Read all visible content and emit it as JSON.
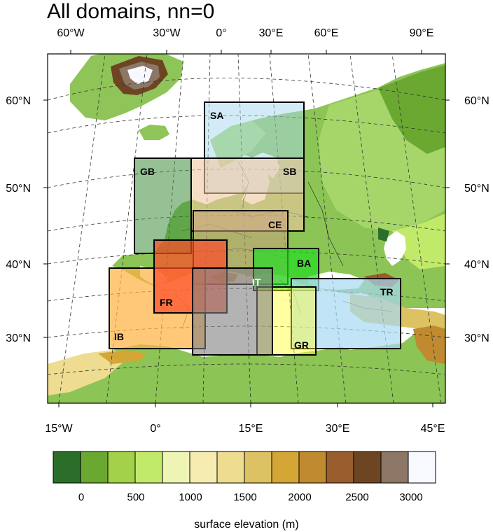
{
  "title": "All domains, nn=0",
  "top_lon_labels": [
    "60°W",
    "30°W",
    "0°",
    "30°E",
    "60°E",
    "90°E"
  ],
  "bottom_lon_labels": [
    "15°W",
    "0°",
    "15°E",
    "30°E",
    "45°E"
  ],
  "left_lat_labels": [
    "60°N",
    "50°N",
    "40°N",
    "30°N"
  ],
  "right_lat_labels": [
    "60°N",
    "50°N",
    "40°N",
    "30°N"
  ],
  "colorbar": {
    "label": "surface elevation (m)",
    "tick_labels": [
      "0",
      "500",
      "1000",
      "1500",
      "2000",
      "2500",
      "3000"
    ],
    "colors": [
      "#2a6e2a",
      "#6aa832",
      "#a3d24a",
      "#c2ea6a",
      "#eef5b4",
      "#f6ecb2",
      "#eedc90",
      "#ddc263",
      "#d3a636",
      "#c08a30",
      "#995c2c",
      "#6e4523",
      "#8c7766",
      "#f8f8ff"
    ]
  },
  "domains": [
    {
      "code": "SA",
      "color": "#a8d8ee"
    },
    {
      "code": "SB",
      "color": "#f0c8a0"
    },
    {
      "code": "GB",
      "color": "#3e8e3e"
    },
    {
      "code": "CE",
      "color": "#caa080"
    },
    {
      "code": "FR",
      "color": "#ff4a2a"
    },
    {
      "code": "BA",
      "color": "#22dd22"
    },
    {
      "code": "IT",
      "color": "#808080"
    },
    {
      "code": "TR",
      "color": "#a8d8f4"
    },
    {
      "code": "IB",
      "color": "#ffb040"
    },
    {
      "code": "GR",
      "color": "#ffff30"
    }
  ]
}
